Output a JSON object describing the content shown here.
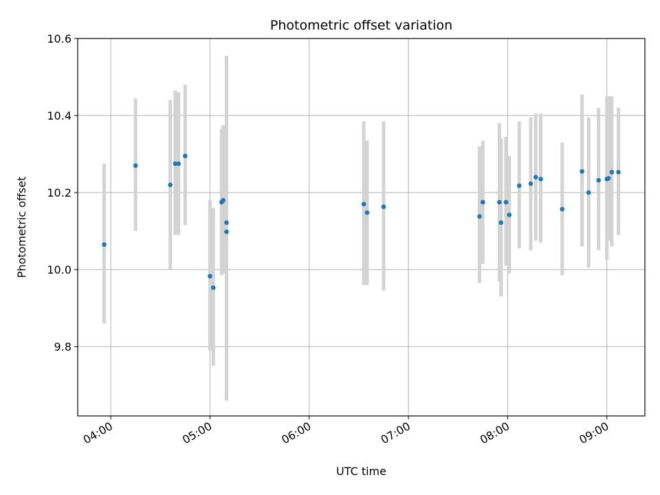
{
  "chart_data": {
    "type": "scatter",
    "title": "Photometric offset variation",
    "xlabel": "UTC time",
    "ylabel": "Photometric offset",
    "x_unit": "UTC time (HH:MM)",
    "xlim": [
      "03:40",
      "09:23"
    ],
    "ylim": [
      9.62,
      10.6
    ],
    "x_ticks": [
      "04:00",
      "05:00",
      "06:00",
      "07:00",
      "08:00",
      "09:00"
    ],
    "y_ticks": [
      9.8,
      10.0,
      10.2,
      10.4,
      10.6
    ],
    "grid": true,
    "marker_color": "#1f77b4",
    "errorbar_color": "#d3d3d3",
    "series": [
      {
        "points": [
          {
            "x": "03:56",
            "y": 10.065,
            "ylo": 9.86,
            "yhi": 10.275
          },
          {
            "x": "04:15",
            "y": 10.27,
            "ylo": 10.1,
            "yhi": 10.445
          },
          {
            "x": "04:36",
            "y": 10.22,
            "ylo": 10.0,
            "yhi": 10.44
          },
          {
            "x": "04:39",
            "y": 10.275,
            "ylo": 10.09,
            "yhi": 10.465
          },
          {
            "x": "04:41",
            "y": 10.275,
            "ylo": 10.09,
            "yhi": 10.46
          },
          {
            "x": "04:45",
            "y": 10.295,
            "ylo": 10.115,
            "yhi": 10.48
          },
          {
            "x": "05:00",
            "y": 9.983,
            "ylo": 9.79,
            "yhi": 10.18
          },
          {
            "x": "05:02",
            "y": 9.953,
            "ylo": 9.75,
            "yhi": 10.16
          },
          {
            "x": "05:07",
            "y": 10.175,
            "ylo": 9.985,
            "yhi": 10.365
          },
          {
            "x": "05:08",
            "y": 10.18,
            "ylo": 9.99,
            "yhi": 10.375
          },
          {
            "x": "05:10",
            "y": 10.098,
            "ylo": 9.66,
            "yhi": 10.555
          },
          {
            "x": "05:10",
            "y": 10.122,
            "ylo": 9.69,
            "yhi": 10.555
          },
          {
            "x": "06:33",
            "y": 10.17,
            "ylo": 9.96,
            "yhi": 10.385
          },
          {
            "x": "06:35",
            "y": 10.148,
            "ylo": 9.96,
            "yhi": 10.335
          },
          {
            "x": "06:45",
            "y": 10.163,
            "ylo": 9.945,
            "yhi": 10.385
          },
          {
            "x": "07:43",
            "y": 10.138,
            "ylo": 9.965,
            "yhi": 10.32
          },
          {
            "x": "07:45",
            "y": 10.175,
            "ylo": 10.015,
            "yhi": 10.335
          },
          {
            "x": "07:55",
            "y": 10.175,
            "ylo": 9.97,
            "yhi": 10.38
          },
          {
            "x": "07:56",
            "y": 10.122,
            "ylo": 9.93,
            "yhi": 10.34
          },
          {
            "x": "07:59",
            "y": 10.175,
            "ylo": 10.01,
            "yhi": 10.345
          },
          {
            "x": "08:01",
            "y": 10.142,
            "ylo": 9.99,
            "yhi": 10.295
          },
          {
            "x": "08:07",
            "y": 10.218,
            "ylo": 10.055,
            "yhi": 10.385
          },
          {
            "x": "08:14",
            "y": 10.223,
            "ylo": 10.05,
            "yhi": 10.395
          },
          {
            "x": "08:17",
            "y": 10.24,
            "ylo": 10.075,
            "yhi": 10.405
          },
          {
            "x": "08:20",
            "y": 10.235,
            "ylo": 10.07,
            "yhi": 10.405
          },
          {
            "x": "08:33",
            "y": 10.157,
            "ylo": 9.985,
            "yhi": 10.33
          },
          {
            "x": "08:45",
            "y": 10.255,
            "ylo": 10.06,
            "yhi": 10.455
          },
          {
            "x": "08:49",
            "y": 10.2,
            "ylo": 10.005,
            "yhi": 10.395
          },
          {
            "x": "08:55",
            "y": 10.232,
            "ylo": 10.05,
            "yhi": 10.42
          },
          {
            "x": "09:00",
            "y": 10.235,
            "ylo": 10.025,
            "yhi": 10.45
          },
          {
            "x": "09:01",
            "y": 10.237,
            "ylo": 10.075,
            "yhi": 10.45
          },
          {
            "x": "09:03",
            "y": 10.253,
            "ylo": 10.06,
            "yhi": 10.45
          },
          {
            "x": "09:07",
            "y": 10.253,
            "ylo": 10.09,
            "yhi": 10.42
          }
        ]
      }
    ]
  }
}
